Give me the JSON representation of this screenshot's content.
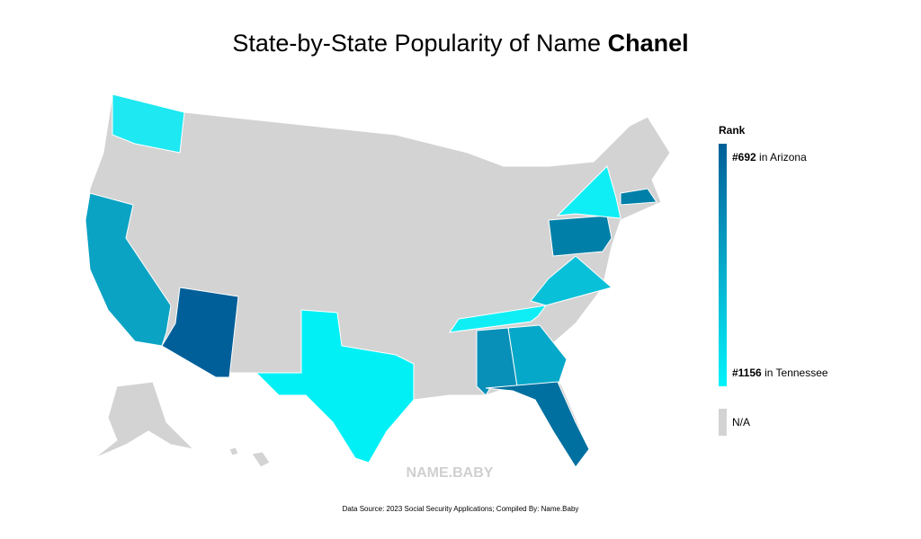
{
  "title": {
    "text": "State-by-State Popularity of Name",
    "name": "Chanel"
  },
  "legend": {
    "heading": "Rank",
    "top": {
      "rank": "#692",
      "state": "in Arizona"
    },
    "bottom": {
      "rank": "#1156",
      "state": "in Tennessee"
    },
    "na": "N/A"
  },
  "watermark": "NAME.BABY",
  "source": "Data Source: 2023 Social Security Applications; Compiled By: Name.Baby"
}
